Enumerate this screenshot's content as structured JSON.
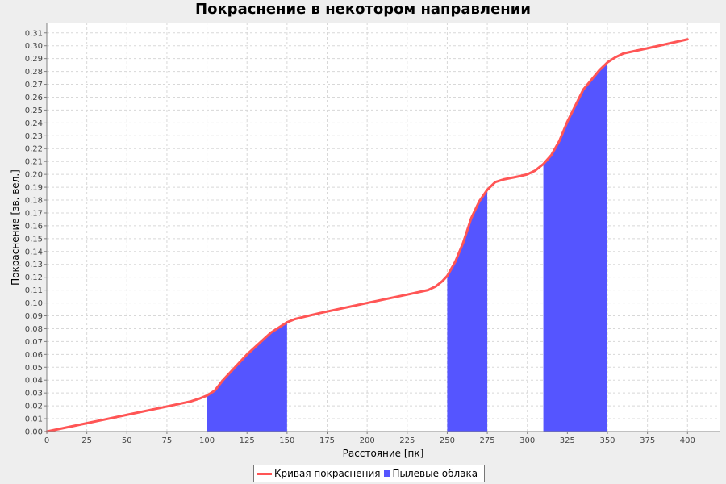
{
  "chart_data": {
    "type": "area",
    "title": "Покраснение в некотором направлении",
    "xlabel": "Расстояние [пк]",
    "ylabel": "Покраснение [зв. вел.]",
    "xlim": [
      0,
      420
    ],
    "ylim": [
      0,
      0.318
    ],
    "x_ticks": [
      0,
      25,
      50,
      75,
      100,
      125,
      150,
      175,
      200,
      225,
      250,
      275,
      300,
      325,
      350,
      375,
      400
    ],
    "x_tick_labels": [
      "0",
      "25",
      "50",
      "75",
      "100",
      "125",
      "150",
      "175",
      "200",
      "225",
      "250",
      "275",
      "300",
      "325",
      "350",
      "375",
      "400"
    ],
    "y_ticks": [
      0,
      0.01,
      0.02,
      0.03,
      0.04,
      0.05,
      0.06,
      0.07,
      0.08,
      0.09,
      0.1,
      0.11,
      0.12,
      0.13,
      0.14,
      0.15,
      0.16,
      0.17,
      0.18,
      0.19,
      0.2,
      0.21,
      0.22,
      0.23,
      0.24,
      0.25,
      0.26,
      0.27,
      0.28,
      0.29,
      0.3,
      0.31
    ],
    "y_tick_labels": [
      "0,00",
      "0,01",
      "0,02",
      "0,03",
      "0,04",
      "0,05",
      "0,06",
      "0,07",
      "0,08",
      "0,09",
      "0,10",
      "0,11",
      "0,12",
      "0,13",
      "0,14",
      "0,15",
      "0,16",
      "0,17",
      "0,18",
      "0,19",
      "0,20",
      "0,21",
      "0,22",
      "0,23",
      "0,24",
      "0,25",
      "0,26",
      "0,27",
      "0,28",
      "0,29",
      "0,30",
      "0,31"
    ],
    "grid": true,
    "legend_position": "bottom",
    "series": [
      {
        "name": "Кривая покраснения",
        "color": "#ff5555",
        "x": [
          0,
          25,
          50,
          75,
          90,
          95,
          100,
          105,
          110,
          125,
          140,
          150,
          155,
          160,
          170,
          200,
          225,
          238,
          243,
          247,
          250,
          255,
          260,
          265,
          270,
          275,
          280,
          285,
          295,
          300,
          305,
          310,
          315,
          320,
          325,
          335,
          345,
          350,
          355,
          360,
          375,
          400
        ],
        "y": [
          0,
          0.0065,
          0.013,
          0.0195,
          0.0235,
          0.0255,
          0.028,
          0.032,
          0.04,
          0.06,
          0.077,
          0.085,
          0.0875,
          0.089,
          0.092,
          0.1,
          0.1065,
          0.11,
          0.113,
          0.117,
          0.121,
          0.132,
          0.147,
          0.166,
          0.179,
          0.188,
          0.194,
          0.196,
          0.1985,
          0.2,
          0.203,
          0.208,
          0.215,
          0.226,
          0.241,
          0.266,
          0.281,
          0.287,
          0.291,
          0.294,
          0.298,
          0.305
        ]
      },
      {
        "name": "Пылевые облака",
        "color": "#5555ff",
        "regions": [
          {
            "x_from": 100,
            "x_to": 150
          },
          {
            "x_from": 250,
            "x_to": 275
          },
          {
            "x_from": 310,
            "x_to": 350
          }
        ]
      }
    ]
  }
}
